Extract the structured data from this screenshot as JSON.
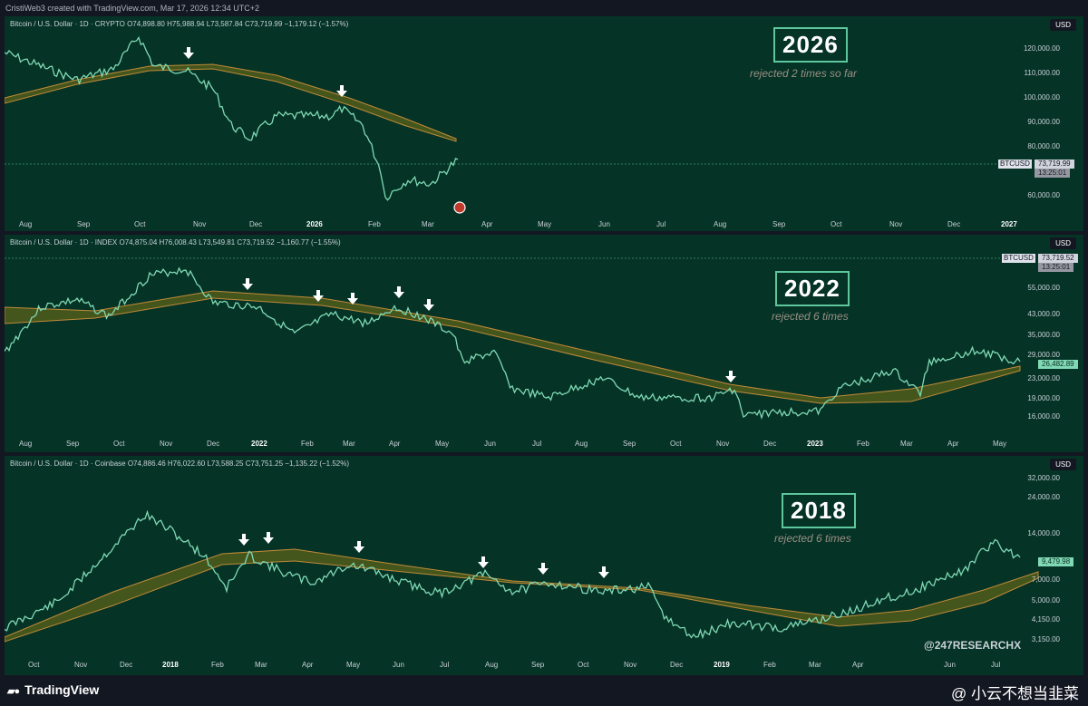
{
  "header": {
    "text": "CristiWeb3 created with TradingView.com, Mar 17, 2026 12:34 UTC+2"
  },
  "panel_2026": {
    "legend": "Bitcoin / U.S. Dollar · 1D · CRYPTO  O74,898.80  H75,988.94  L73,587.84  C73,719.99  −1,179.12 (−1.57%)",
    "currency": "USD",
    "year": "2026",
    "subtitle": "rejected 2 times so far",
    "y_ticks": [
      "120,000.00",
      "110,000.00",
      "100,000.00",
      "90,000.00",
      "80,000.00",
      "60,000.00"
    ],
    "x_ticks": [
      "Aug",
      "Sep",
      "Oct",
      "Nov",
      "Dec",
      "2026",
      "Feb",
      "Mar",
      "Apr",
      "May",
      "Jun",
      "Jul",
      "Aug",
      "Sep",
      "Oct",
      "Nov",
      "Dec",
      "2027"
    ],
    "symbol_tag": "BTCUSD",
    "price_tag": "73,719.99",
    "timer_tag": "13:25:01"
  },
  "panel_2022": {
    "legend": "Bitcoin / U.S. Dollar · 1D · INDEX  O74,875.04  H76,008.43  L73,549.81  C73,719.52  −1,160.77 (−1.55%)",
    "currency": "USD",
    "year": "2022",
    "subtitle": "rejected 6 times",
    "y_ticks": [
      "55,000.00",
      "43,000.00",
      "35,000.00",
      "29,000.00",
      "23,000.00",
      "19,000.00",
      "16,000.00"
    ],
    "x_ticks": [
      "Aug",
      "Sep",
      "Oct",
      "Nov",
      "Dec",
      "2022",
      "Feb",
      "Mar",
      "Apr",
      "May",
      "Jun",
      "Jul",
      "Aug",
      "Sep",
      "Oct",
      "Nov",
      "Dec",
      "2023",
      "Feb",
      "Mar",
      "Apr",
      "May"
    ],
    "symbol_tag": "BTCUSD",
    "price_tag": "73,719.52",
    "timer_tag": "13:25:01",
    "last_tag": "26,482.89"
  },
  "panel_2018": {
    "legend": "Bitcoin / U.S. Dollar · 1D · Coinbase  O74,886.46  H76,022.60  L73,588.25  C73,751.25  −1,135.22 (−1.52%)",
    "currency": "USD",
    "year": "2018",
    "subtitle": "rejected 6 times",
    "y_ticks": [
      "32,000.00",
      "24,000.00",
      "14,000.00",
      "7,000.00",
      "5,000.00",
      "4,150.00",
      "3,150.00"
    ],
    "x_ticks": [
      "Oct",
      "Nov",
      "Dec",
      "2018",
      "Feb",
      "Mar",
      "Apr",
      "May",
      "Jun",
      "Jul",
      "Aug",
      "Sep",
      "Oct",
      "Nov",
      "Dec",
      "2019",
      "Feb",
      "Mar",
      "Apr",
      "Jun",
      "Jul"
    ],
    "last_tag": "9,479.98",
    "handle": "@247RESEARCHX"
  },
  "footer": {
    "logo": "TradingView",
    "watermark": "@ 小云不想当韭菜"
  },
  "colors": {
    "bg": "#131722",
    "pane": "#053325",
    "candle": "#7fd9b5",
    "band": "#4c5a1c",
    "ma": "#c08a3a"
  }
}
